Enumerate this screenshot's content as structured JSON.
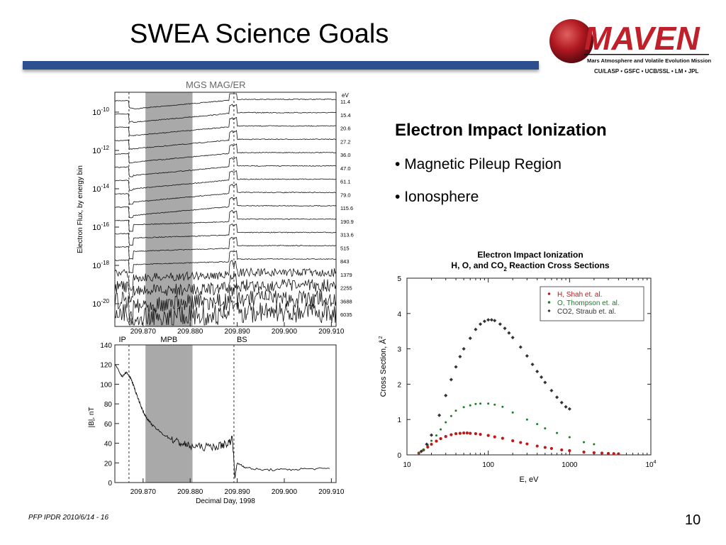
{
  "slide": {
    "title": "SWEA Science Goals",
    "footer": "PFP IPDR 2010/6/14 - 16",
    "page_number": "10",
    "title_bar_color": "#2c4f8f"
  },
  "logo": {
    "name": "MAVEN",
    "subtitle": "Mars Atmosphere and Volatile Evolution Mission",
    "partners": "CU/LASP • GSFC • UCB/SSL • LM • JPL",
    "color": "#c0202a"
  },
  "content": {
    "heading": "Electron Impact Ionization",
    "bullets": [
      "Magnetic Pileup Region",
      "Ionosphere"
    ]
  },
  "left_figure": {
    "caption": "MGS MAG/ER",
    "top_panel": {
      "ylabel": "Electron Flux, by energy bin",
      "ytick_labels": [
        "10^-10",
        "10^-12",
        "10^-14",
        "10^-16",
        "10^-18",
        "10^-20"
      ],
      "energy_header": "eV",
      "energies": [
        "11.4",
        "15.4",
        "20.6",
        "27.2",
        "36.0",
        "47.0",
        "61.1",
        "79.0",
        "115.6",
        "190.9",
        "313.6",
        "515",
        "843",
        "1379",
        "2255",
        "3688",
        "6035"
      ],
      "xtick_labels": [
        "209.870",
        "209.880",
        "209.890",
        "209.900",
        "209.910"
      ]
    },
    "region_labels": [
      "IP",
      "MPB",
      "BS"
    ],
    "bottom_panel": {
      "ylabel": "|B|, nT",
      "ytick_labels": [
        "0",
        "20",
        "40",
        "60",
        "80",
        "100",
        "120",
        "140"
      ],
      "xtick_labels": [
        "209.870",
        "209.880",
        "209.890",
        "209.900",
        "209.910"
      ],
      "xlabel": "Decimal Day, 1998"
    }
  },
  "chart_data": [
    {
      "type": "line",
      "title": "",
      "xlabel": "Decimal Day, 1998",
      "ylabel": "|B|, nT",
      "xlim": [
        209.864,
        209.911
      ],
      "ylim": [
        0,
        140
      ],
      "grid": false,
      "shaded_region": [
        209.8705,
        209.8805
      ],
      "boundaries": [
        {
          "name": "IP",
          "x": 209.867
        },
        {
          "name": "BS",
          "x": 209.8893
        }
      ],
      "series": [
        {
          "x": [
            209.864,
            209.8655,
            209.8665,
            209.8675,
            209.868,
            209.869,
            209.87,
            209.871,
            209.872,
            209.874,
            209.876,
            209.878,
            209.88,
            209.883,
            209.886,
            209.888,
            209.889,
            209.8895,
            209.89,
            209.892,
            209.895,
            209.9,
            209.905,
            209.91
          ],
          "y": [
            120,
            108,
            112,
            105,
            98,
            85,
            72,
            64,
            58,
            50,
            44,
            40,
            37,
            36,
            37,
            40,
            45,
            5,
            20,
            15,
            13,
            13,
            14,
            14
          ]
        }
      ]
    },
    {
      "type": "scatter",
      "title": "Electron Impact Ionization H, O, and CO2 Reaction Cross Sections",
      "title_line1": "Electron  Impact  Ionization",
      "title_line2": "H,  O,  and  CO",
      "title_line2_sub": "2",
      "title_line2_end": "  Reaction  Cross  Sections",
      "xlabel": "E, eV",
      "ylabel": "Cross Section, Å",
      "ylabel_sup": "2",
      "xscale": "log",
      "xlim": [
        10,
        10000
      ],
      "ylim": [
        0,
        5
      ],
      "xtick_labels": [
        "10",
        "100",
        "1000",
        "10"
      ],
      "xtick_last_sup": "4",
      "ytick_labels": [
        "0",
        "1",
        "2",
        "3",
        "4",
        "5"
      ],
      "legend_position": "top-right",
      "series": [
        {
          "name": "H, Shah et. al.",
          "color": "#c01818",
          "x": [
            14,
            16,
            18,
            20,
            23,
            26,
            30,
            35,
            40,
            45,
            50,
            55,
            60,
            70,
            80,
            100,
            120,
            150,
            200,
            250,
            300,
            400,
            500,
            600,
            800,
            1000,
            1500,
            2000,
            2500,
            3000,
            3500,
            4000
          ],
          "y": [
            0.05,
            0.14,
            0.22,
            0.3,
            0.39,
            0.46,
            0.52,
            0.57,
            0.6,
            0.61,
            0.62,
            0.62,
            0.61,
            0.6,
            0.58,
            0.55,
            0.51,
            0.47,
            0.4,
            0.35,
            0.31,
            0.25,
            0.21,
            0.18,
            0.14,
            0.12,
            0.08,
            0.06,
            0.05,
            0.04,
            0.035,
            0.03
          ]
        },
        {
          "name": "O, Thompson et. al.",
          "color": "#1a7a2a",
          "x": [
            14,
            16,
            18,
            20,
            23,
            26,
            30,
            35,
            40,
            50,
            60,
            70,
            80,
            100,
            120,
            150,
            200,
            300,
            400,
            500,
            700,
            1000,
            1500,
            2000
          ],
          "y": [
            0.05,
            0.15,
            0.28,
            0.4,
            0.55,
            0.72,
            0.92,
            1.1,
            1.25,
            1.35,
            1.4,
            1.44,
            1.45,
            1.45,
            1.42,
            1.36,
            1.2,
            1.0,
            0.87,
            0.75,
            0.62,
            0.5,
            0.36,
            0.3
          ]
        },
        {
          "name": "CO2, Straub et. al.",
          "color": "#333333",
          "x": [
            15,
            17.5,
            20,
            25,
            30,
            35,
            40,
            45,
            50,
            60,
            70,
            80,
            90,
            100,
            110,
            120,
            140,
            160,
            180,
            200,
            250,
            300,
            350,
            400,
            450,
            500,
            600,
            700,
            800,
            900,
            1000
          ],
          "y": [
            0.1,
            0.3,
            0.56,
            1.12,
            1.68,
            2.13,
            2.49,
            2.78,
            3.0,
            3.3,
            3.55,
            3.7,
            3.78,
            3.82,
            3.82,
            3.8,
            3.7,
            3.58,
            3.45,
            3.32,
            3.05,
            2.8,
            2.56,
            2.36,
            2.2,
            2.05,
            1.82,
            1.63,
            1.48,
            1.36,
            1.3
          ]
        }
      ]
    }
  ]
}
